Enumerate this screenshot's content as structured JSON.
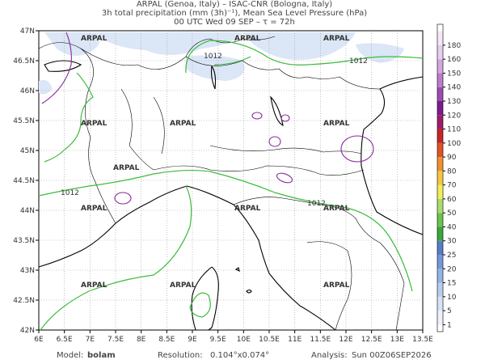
{
  "header": {
    "lines": [
      "ARPAL (Genoa, Italy)  –  ISAC-CNR (Bologna, Italy)",
      "3h total precipitation (mm (3h)⁻¹), Mean Sea Level Pressure (hPa)",
      "00 UTC Wed 09 SEP  –  τ = 72h"
    ]
  },
  "map": {
    "lon_labels": [
      "6E",
      "6.5E",
      "7E",
      "7.5E",
      "8E",
      "8.5E",
      "9E",
      "9.5E",
      "10E",
      "10.5E",
      "11E",
      "11.5E",
      "12E",
      "12.5E",
      "13E",
      "13.5E"
    ],
    "lat_labels": [
      "47N",
      "46.5N",
      "46N",
      "45.5N",
      "45N",
      "44.5N",
      "44N",
      "43.5N",
      "43N",
      "42.5N",
      "42N"
    ],
    "watermark": "ARPAL",
    "isobar_labels": [
      "1012",
      "1012",
      "1012",
      "1012"
    ]
  },
  "colorbar": {
    "levels": [
      1,
      5,
      10,
      15,
      20,
      25,
      30,
      40,
      50,
      60,
      70,
      80,
      90,
      100,
      110,
      120,
      130,
      140,
      150,
      160,
      180
    ],
    "colors": [
      "#eef0fb",
      "#d6e2f6",
      "#b8cdee",
      "#94b4e4",
      "#7597d8",
      "#5a7cc8",
      "#3aa83a",
      "#6cc44c",
      "#a8dc6c",
      "#eeee5c",
      "#f6c640",
      "#f09030",
      "#e05424",
      "#c82424",
      "#a01a6c",
      "#7e1a8e",
      "#9c4cb0",
      "#bc7cce",
      "#d4a6de",
      "#e6cef0",
      "#f4e8f8"
    ]
  },
  "footer": {
    "model_label": "Model:",
    "model": "bolam",
    "resolution_label": "Resolution:",
    "resolution": "0.104°x0.074°",
    "analysis_label": "Analysis:",
    "analysis": "Sun 00Z06SEP2026"
  }
}
